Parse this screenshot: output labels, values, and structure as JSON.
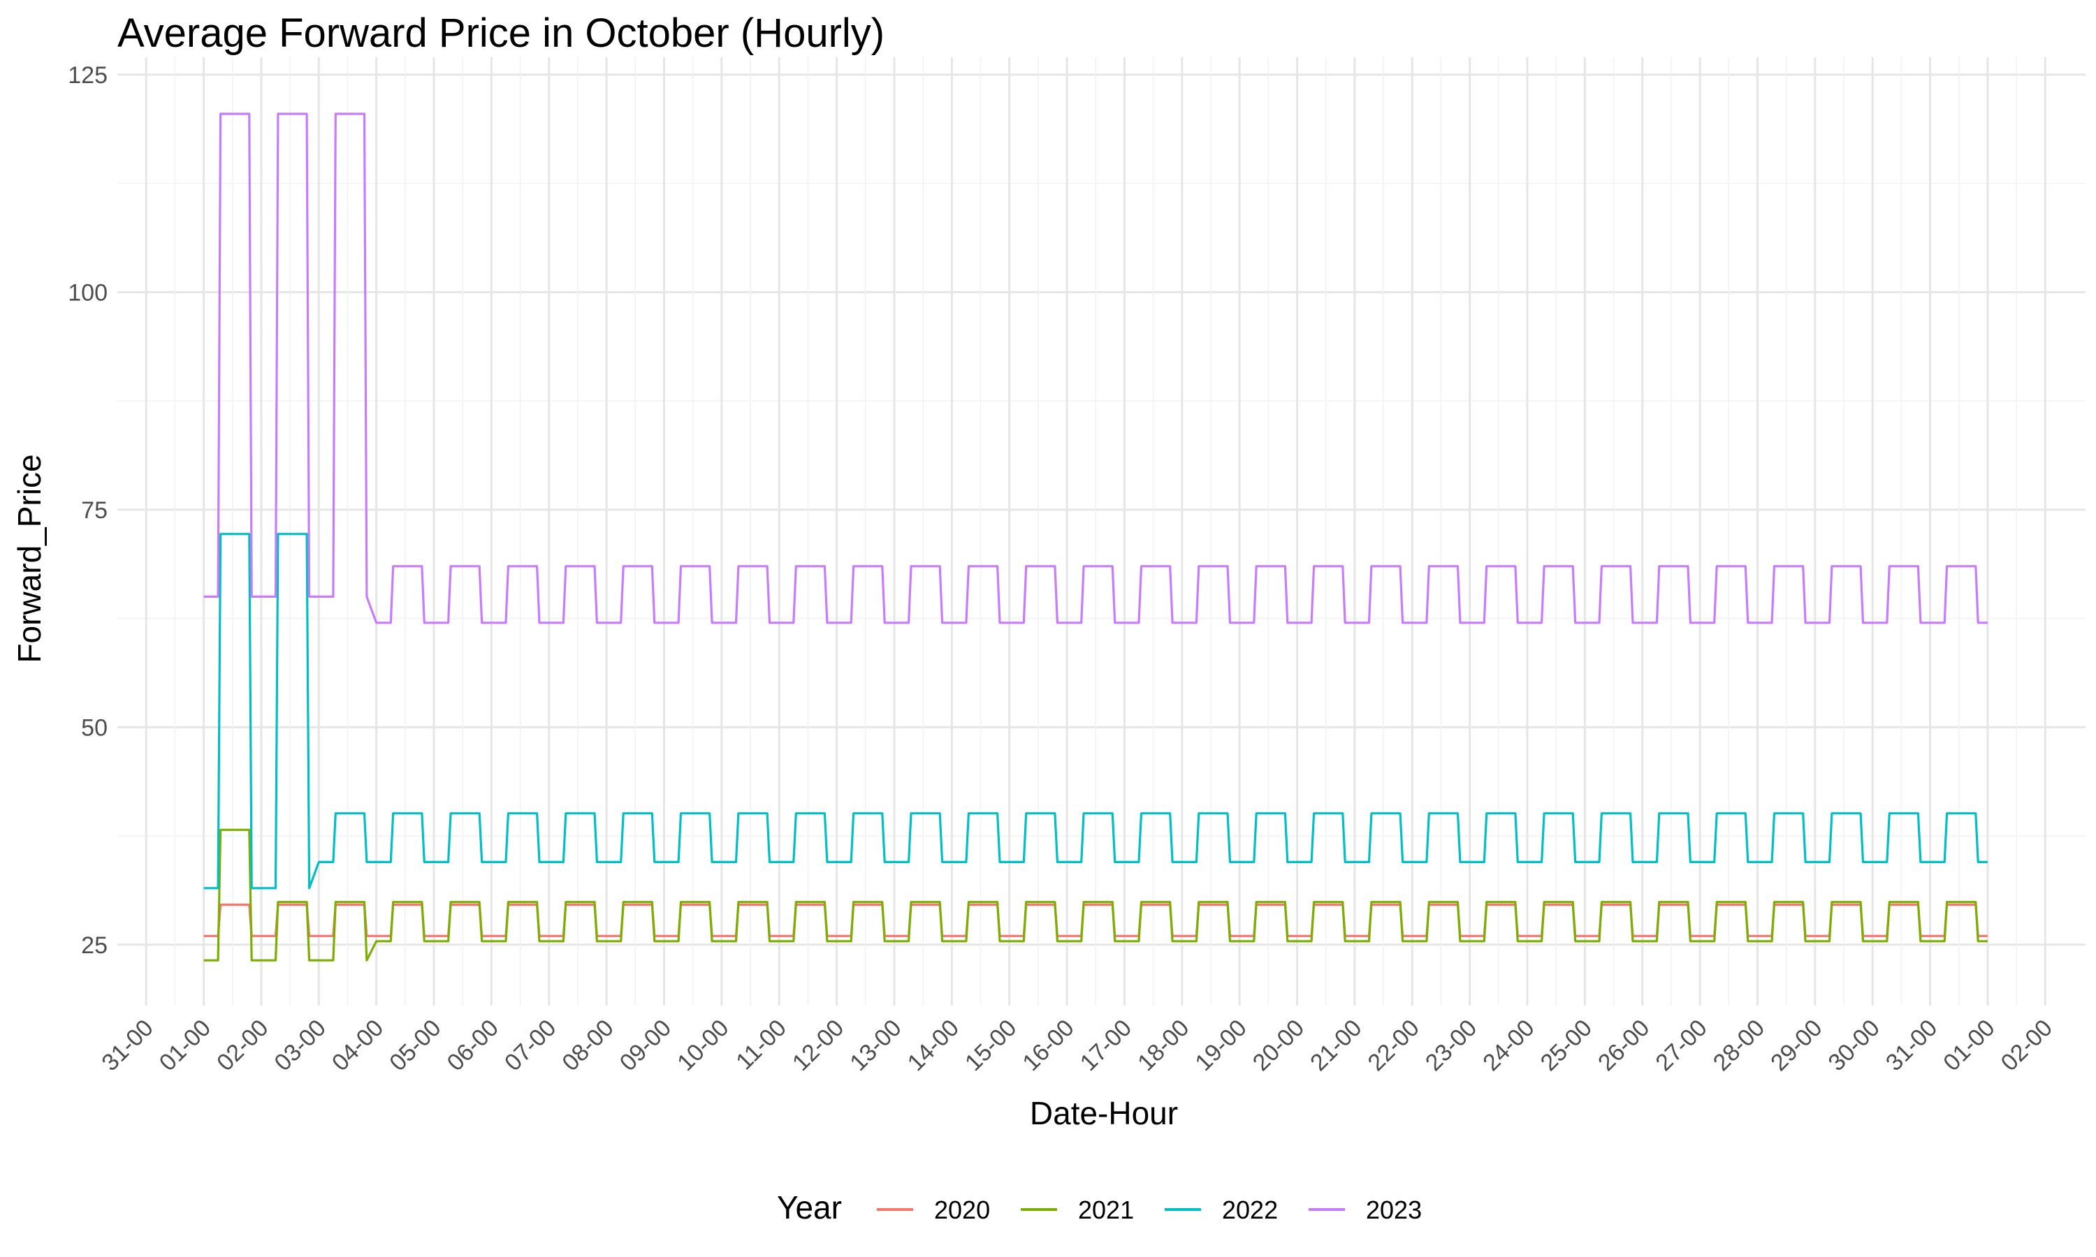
{
  "chart_data": {
    "type": "line",
    "title": "Average Forward Price in October (Hourly)",
    "xlabel": "Date-Hour",
    "ylabel": "Forward_Price",
    "ylim": [
      18,
      127
    ],
    "yticks": [
      25,
      50,
      75,
      100,
      125
    ],
    "x_unit": "days since 30 Sep 00:00",
    "xlim": [
      -1.5,
      32.7
    ],
    "x_tick_labels": [
      "31-00",
      "01-00",
      "02-00",
      "03-00",
      "04-00",
      "05-00",
      "06-00",
      "07-00",
      "08-00",
      "09-00",
      "10-00",
      "11-00",
      "12-00",
      "13-00",
      "14-00",
      "15-00",
      "16-00",
      "17-00",
      "18-00",
      "19-00",
      "20-00",
      "21-00",
      "22-00",
      "23-00",
      "24-00",
      "25-00",
      "26-00",
      "27-00",
      "28-00",
      "29-00",
      "30-00",
      "31-00",
      "01-00",
      "02-00"
    ],
    "x_tick_values": [
      -1,
      0,
      1,
      2,
      3,
      4,
      5,
      6,
      7,
      8,
      9,
      10,
      11,
      12,
      13,
      14,
      15,
      16,
      17,
      18,
      19,
      20,
      21,
      22,
      23,
      24,
      25,
      26,
      27,
      28,
      29,
      30,
      31,
      32
    ],
    "grid": true,
    "legend": {
      "title": "Year",
      "position": "bottom"
    },
    "pattern_note": "Daily shape: off-peak value from 00:00-06:00 and 20:00-24:00, peak value 07:00-19:00 with one-hour ramps; first three days carry special levels",
    "series": [
      {
        "name": "2020",
        "color": "#F8766D",
        "first_days": [
          [
            26,
            29.6
          ],
          [
            26,
            29.6
          ],
          [
            26,
            29.6
          ]
        ],
        "daily_offpeak": 26,
        "daily_peak": 29.6,
        "day_end": 31
      },
      {
        "name": "2021",
        "color": "#7CAE00",
        "first_days": [
          [
            23.2,
            38.2
          ],
          [
            23.2,
            29.9
          ],
          [
            23.2,
            29.9
          ]
        ],
        "daily_offpeak": 25.4,
        "daily_peak": 29.9,
        "day_end": 31
      },
      {
        "name": "2022",
        "color": "#00BFC4",
        "first_days": [
          [
            31.5,
            72.2
          ],
          [
            31.5,
            72.2
          ],
          [
            34.5,
            40.1
          ]
        ],
        "daily_offpeak": 34.5,
        "daily_peak": 40.1,
        "day_end": 31
      },
      {
        "name": "2023",
        "color": "#C77CFF",
        "first_days": [
          [
            65,
            120.5
          ],
          [
            65,
            120.5
          ],
          [
            65,
            120.5
          ]
        ],
        "daily_offpeak": 62,
        "daily_peak": 68.5,
        "day_end": 31
      }
    ]
  }
}
